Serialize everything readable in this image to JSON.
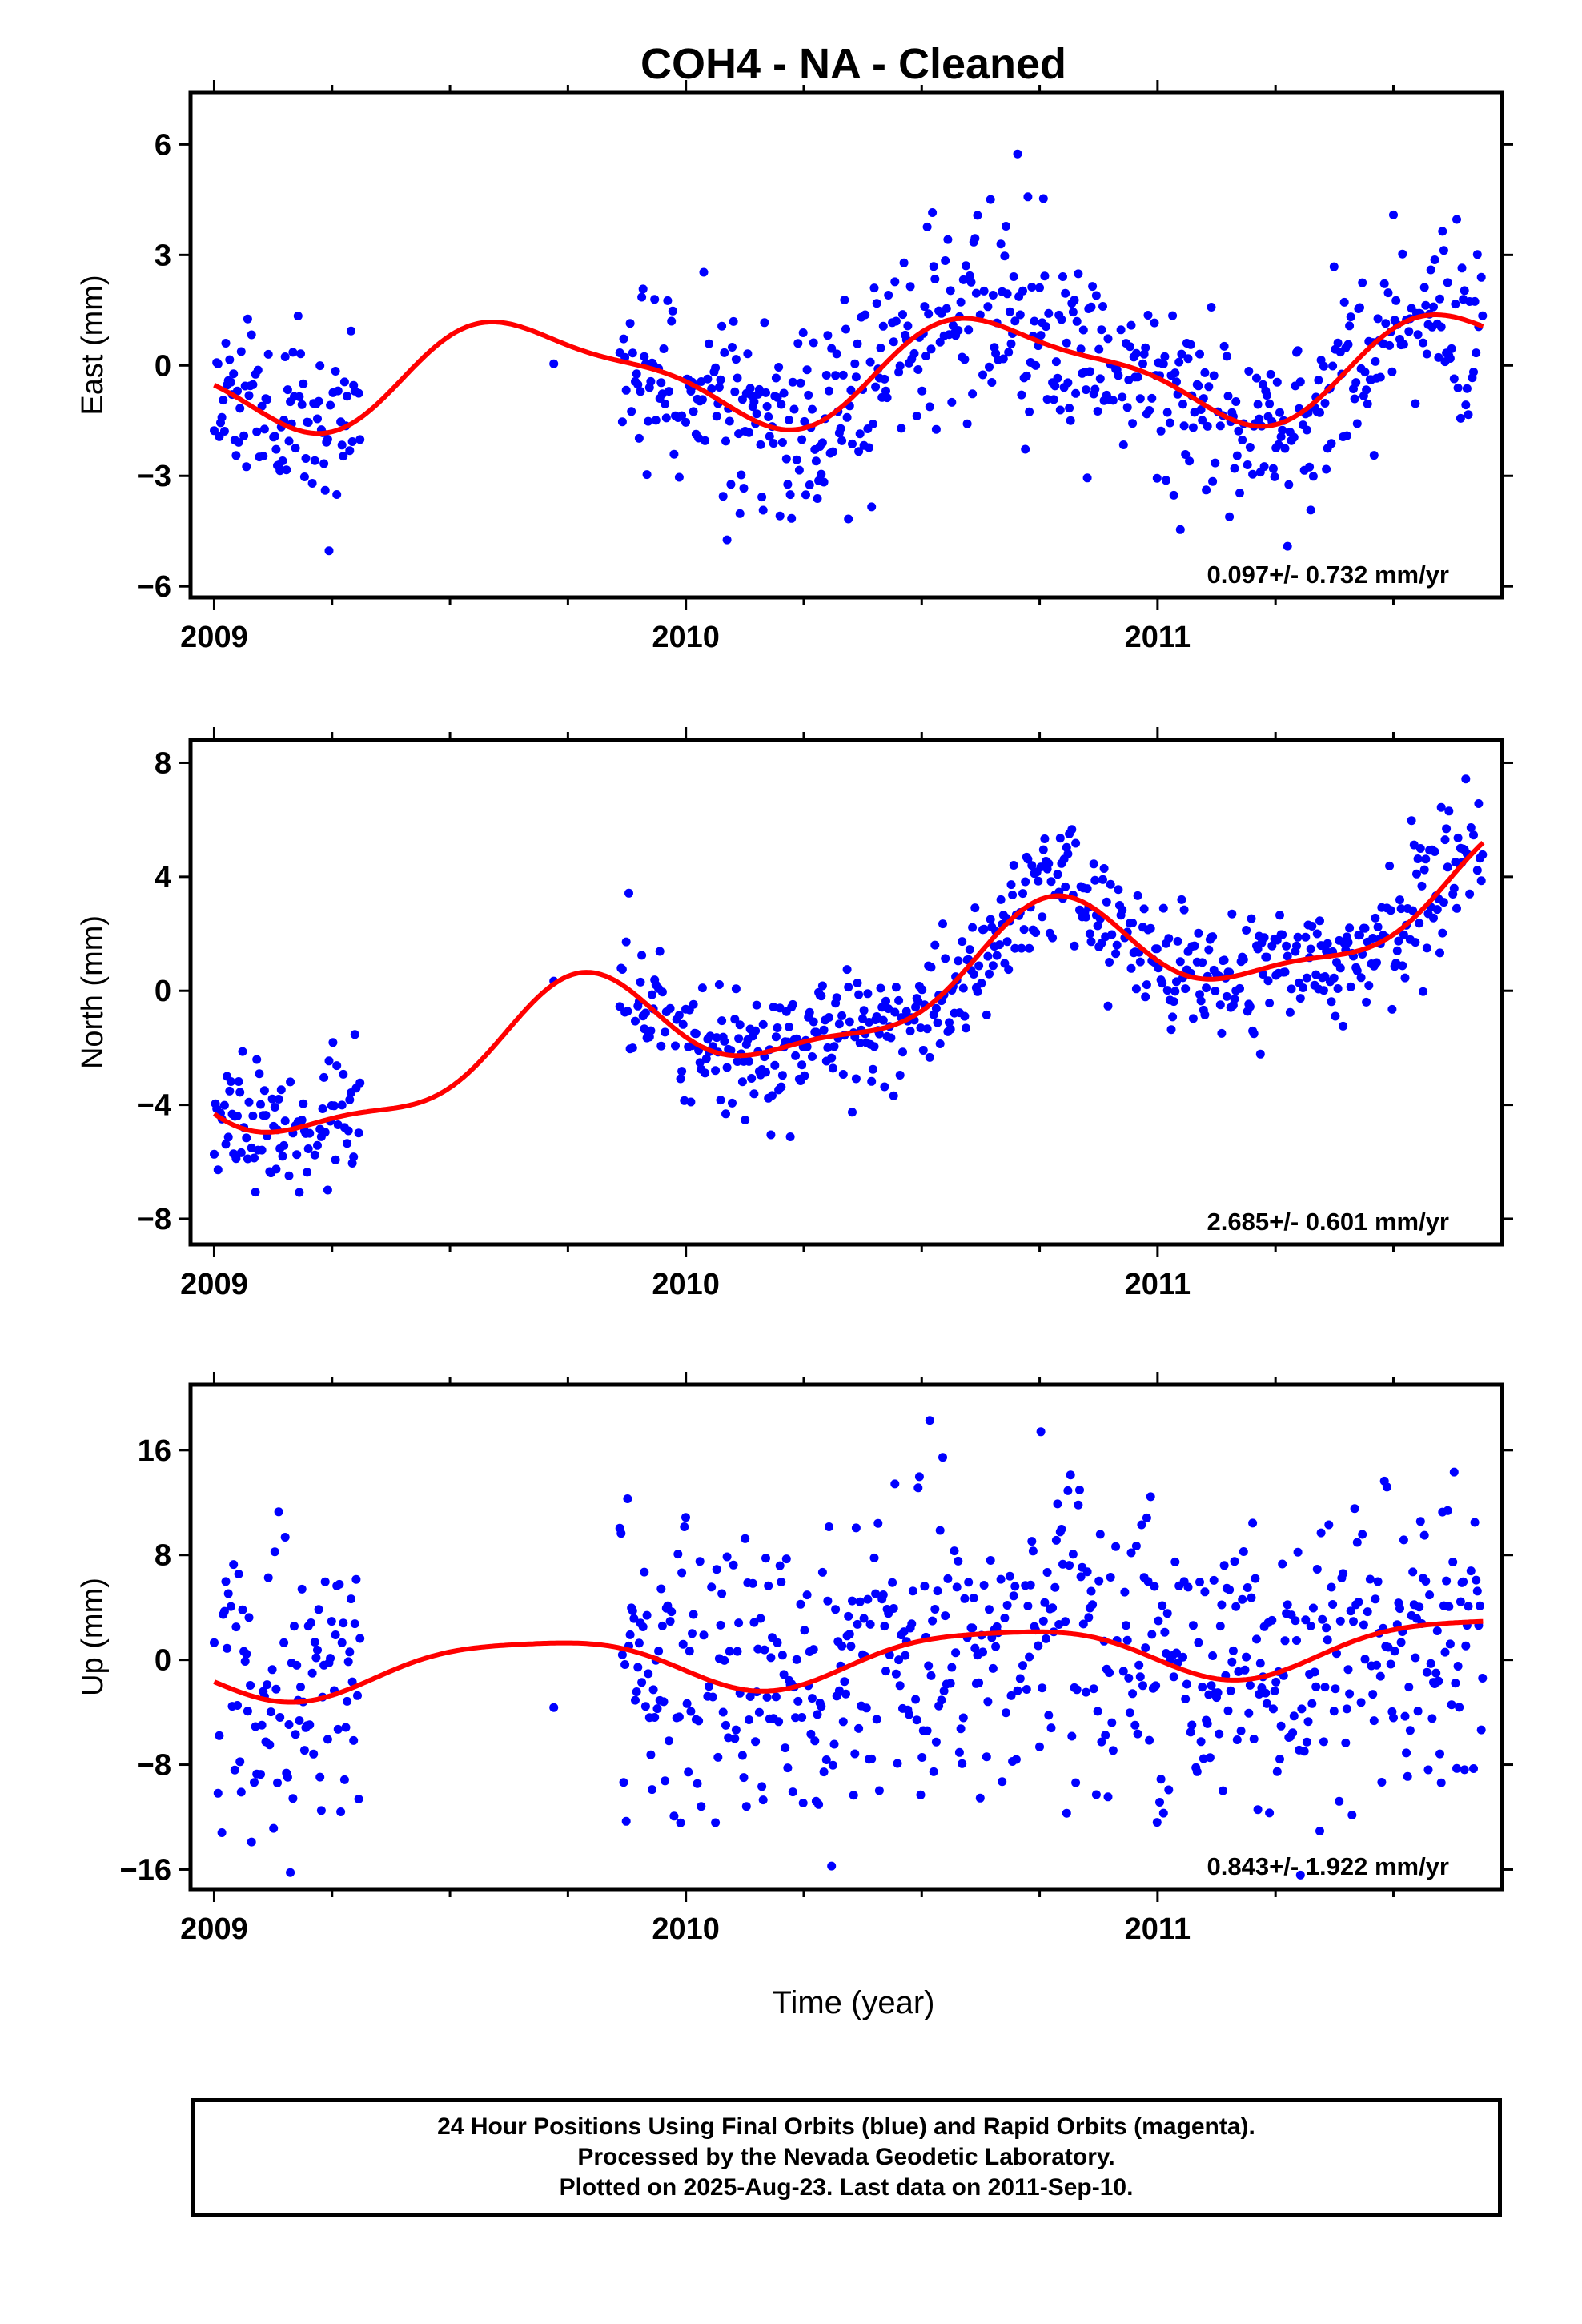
{
  "title": "COH4  - NA - Cleaned",
  "xlabel": "Time (year)",
  "footer": {
    "line1": "24 Hour Positions Using Final Orbits (blue) and Rapid Orbits (magenta).",
    "line2": "Processed by the Nevada Geodetic Laboratory.",
    "line3": "Plotted on 2025-Aug-23. Last data on 2011-Sep-10."
  },
  "colors": {
    "points": "#0000ff",
    "fit": "#ff0000",
    "frame": "#000000"
  },
  "chart_data": [
    {
      "type": "scatter",
      "ylabel": "East (mm)",
      "rate": "0.097+/- 0.732 mm/yr",
      "xlim": [
        2008.95,
        2011.73
      ],
      "ylim": [
        -6.3,
        7.4
      ],
      "yticks": [
        -6,
        -3,
        0,
        3,
        6
      ],
      "ytick_labels": [
        "−6",
        "−3",
        "0",
        "3",
        "6"
      ],
      "xticks": [
        2009,
        2010,
        2011
      ],
      "xtick_labels": [
        "2009",
        "2010",
        "2011"
      ],
      "data_ranges": [
        [
          2009.0,
          2009.31
        ],
        [
          2009.72,
          2009.72
        ],
        [
          2009.86,
          2011.69
        ]
      ],
      "fit": {
        "offset": -0.15,
        "trend": 0.097,
        "ann_cos": -0.55,
        "ann_sin": 1.2,
        "semi_cos": -0.2,
        "semi_sin": 0.35,
        "t0": 2010.35
      },
      "noise": 1.3,
      "seed": 11
    },
    {
      "type": "scatter",
      "ylabel": "North (mm)",
      "rate": "2.685+/- 0.601 mm/yr",
      "xlim": [
        2008.95,
        2011.73
      ],
      "ylim": [
        -8.9,
        8.8
      ],
      "yticks": [
        -8,
        -4,
        0,
        4,
        8
      ],
      "ytick_labels": [
        "−8",
        "−4",
        "0",
        "4",
        "8"
      ],
      "xticks": [
        2009,
        2010,
        2011
      ],
      "xtick_labels": [
        "2009",
        "2010",
        "2011"
      ],
      "data_ranges": [
        [
          2009.0,
          2009.31
        ],
        [
          2009.72,
          2009.72
        ],
        [
          2009.86,
          2011.69
        ]
      ],
      "fit": {
        "offset": -0.3,
        "trend": 2.685,
        "ann_cos": -1.6,
        "ann_sin": 0.9,
        "semi_cos": 0.4,
        "semi_sin": -0.5,
        "t0": 2010.35
      },
      "noise": 1.1,
      "seed": 23
    },
    {
      "type": "scatter",
      "ylabel": "Up (mm)",
      "rate": "0.843+/- 1.922 mm/yr",
      "xlim": [
        2008.95,
        2011.73
      ],
      "ylim": [
        -17.5,
        21
      ],
      "yticks": [
        -16,
        -8,
        0,
        8,
        16
      ],
      "ytick_labels": [
        "−16",
        "−8",
        "0",
        "8",
        "16"
      ],
      "xticks": [
        2009,
        2010,
        2011
      ],
      "xtick_labels": [
        "2009",
        "2010",
        "2011"
      ],
      "data_ranges": [
        [
          2009.0,
          2009.31
        ],
        [
          2009.72,
          2009.72
        ],
        [
          2009.86,
          2011.69
        ]
      ],
      "fit": {
        "offset": 0.2,
        "trend": 0.843,
        "ann_cos": -0.9,
        "ann_sin": 1.8,
        "semi_cos": 0.3,
        "semi_sin": 0.3,
        "t0": 2010.35
      },
      "noise": 5.5,
      "seed": 37
    }
  ]
}
